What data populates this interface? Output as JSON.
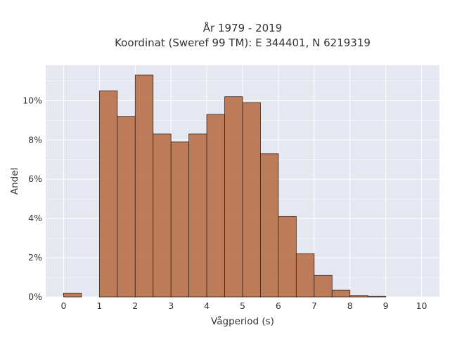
{
  "chart_data": {
    "type": "bar",
    "title_lines": [
      "År 1979 - 2019",
      "Koordinat (Sweref 99 TM): E 344401, N 6219319"
    ],
    "xlabel": "Vågperiod (s)",
    "ylabel": "Andel",
    "xlim": [
      -0.5,
      10.5
    ],
    "ylim": [
      0,
      11.8
    ],
    "x_ticks": [
      0,
      1,
      2,
      3,
      4,
      5,
      6,
      7,
      8,
      9,
      10
    ],
    "y_ticks": [
      0,
      2,
      4,
      6,
      8,
      10
    ],
    "y_tick_suffix": "%",
    "bin_width": 0.5,
    "bins_start": [
      0.0,
      0.5,
      1.0,
      1.5,
      2.0,
      2.5,
      3.0,
      3.5,
      4.0,
      4.5,
      5.0,
      5.5,
      6.0,
      6.5,
      7.0,
      7.5,
      8.0,
      8.5,
      9.0,
      9.5
    ],
    "values": [
      0.2,
      0.0,
      10.5,
      9.2,
      11.3,
      8.3,
      7.9,
      8.3,
      9.3,
      10.2,
      9.9,
      7.3,
      4.1,
      2.2,
      1.1,
      0.35,
      0.08,
      0.03,
      0.0,
      0.0
    ],
    "grid": true,
    "bar_color": "#b5683f",
    "plot_background": "#e5e7f1"
  }
}
